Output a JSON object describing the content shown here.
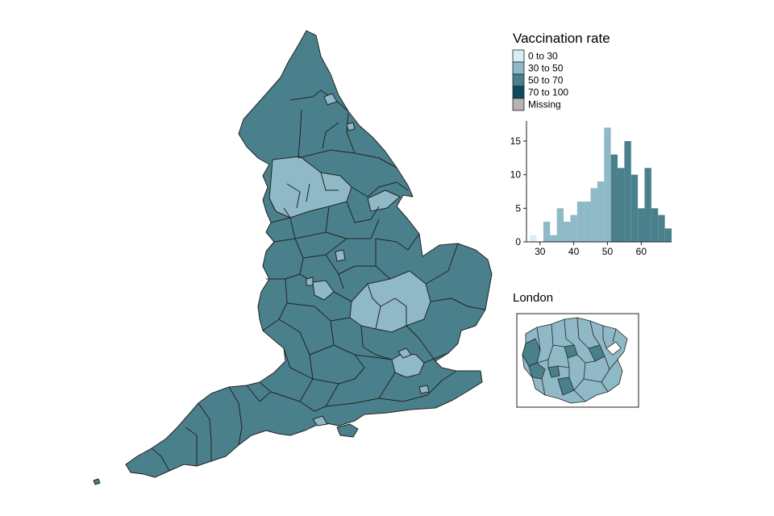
{
  "legend": {
    "title": "Vaccination rate",
    "items": [
      {
        "label": "0 to 30",
        "color": "#d6eef5"
      },
      {
        "label": "30 to 50",
        "color": "#8fb9c6"
      },
      {
        "label": "50 to 70",
        "color": "#4a808c"
      },
      {
        "label": "70 to 100",
        "color": "#0d4a5c"
      },
      {
        "label": "Missing",
        "color": "#b3b3b3"
      }
    ]
  },
  "map": {
    "main_color": "#4a808c",
    "light_color": "#8fb9c6",
    "border_color": "#222222"
  },
  "london": {
    "title": "London"
  },
  "chart_data": {
    "type": "bar",
    "description_bins_width": 2,
    "bins": [
      27,
      29,
      31,
      33,
      35,
      37,
      39,
      41,
      43,
      45,
      47,
      49,
      51,
      53,
      55,
      57,
      59,
      61,
      63,
      65,
      67
    ],
    "values": [
      1,
      0,
      3,
      1,
      5,
      3,
      4,
      6,
      6,
      8,
      9,
      17,
      13,
      11,
      15,
      10,
      5,
      11,
      5,
      4,
      2
    ],
    "colors_by_range": [
      {
        "from": 26,
        "to": 30,
        "color": "#d6eef5"
      },
      {
        "from": 30,
        "to": 50,
        "color": "#8fb9c6"
      },
      {
        "from": 50,
        "to": 70,
        "color": "#4a808c"
      }
    ],
    "xlim": [
      26,
      69
    ],
    "ylim": [
      0,
      18
    ],
    "xticks": [
      30,
      40,
      50,
      60
    ],
    "yticks": [
      0,
      5,
      10,
      15
    ],
    "xlabel": "",
    "ylabel": ""
  }
}
